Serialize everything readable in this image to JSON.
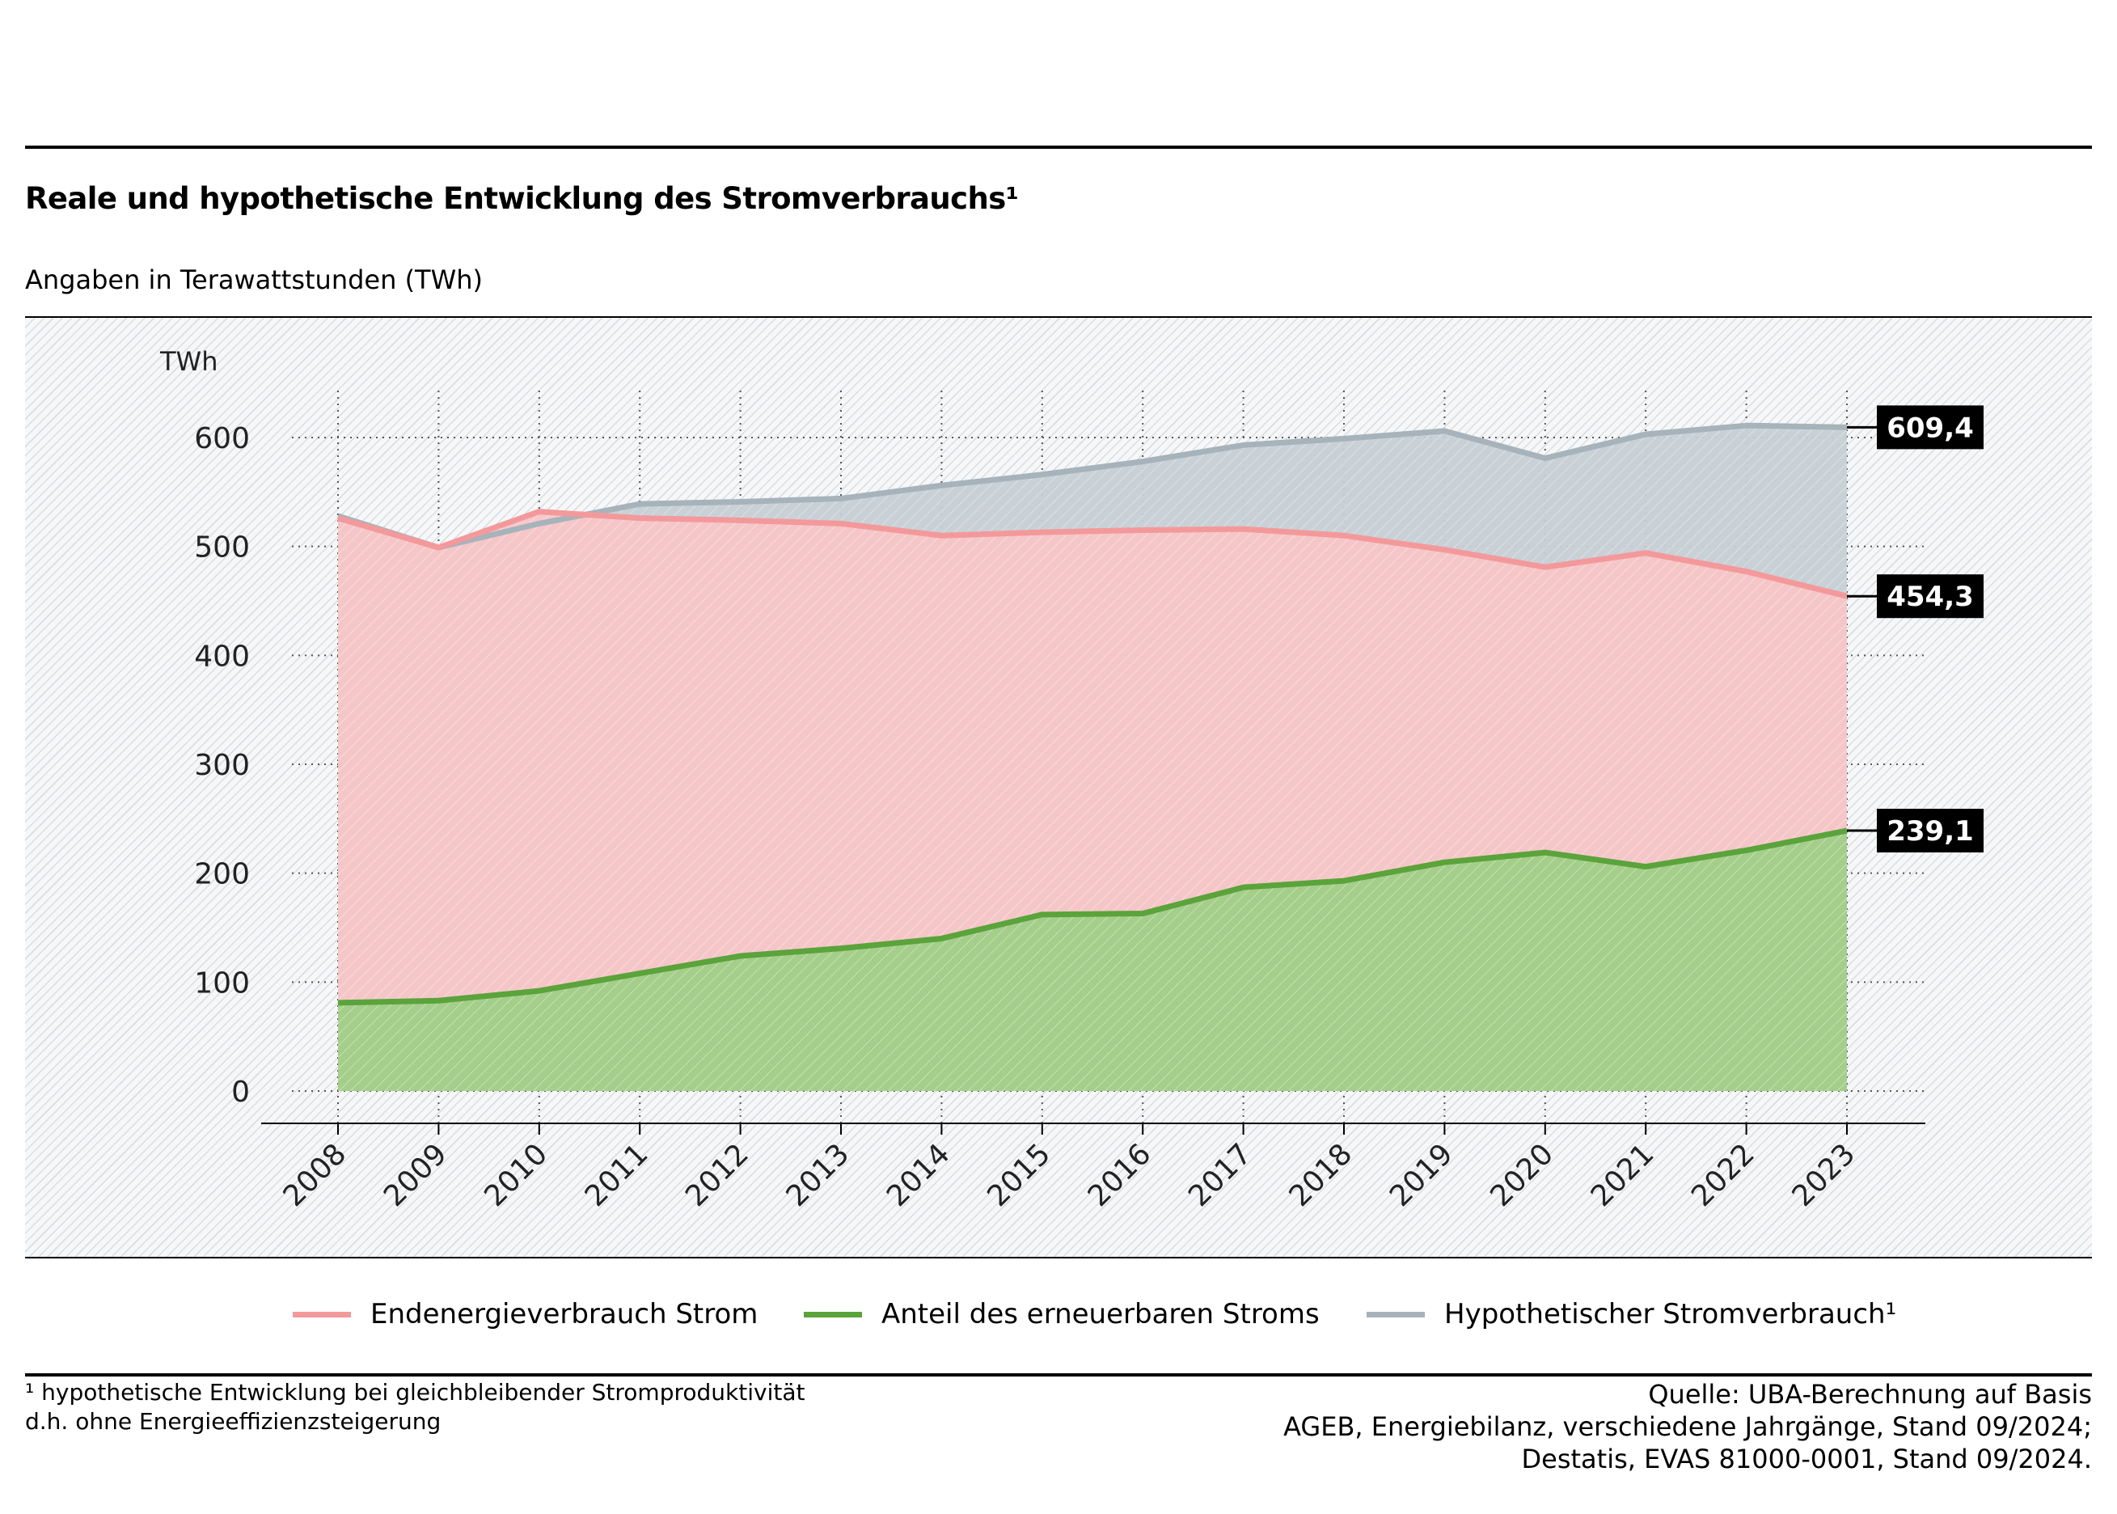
{
  "header": {
    "title": "Reale und hypothetische Entwicklung des Stromverbrauchs¹",
    "subtitle": "Angaben in Terawattstunden (TWh)"
  },
  "chart_data": {
    "type": "area",
    "y_unit": "TWh",
    "ylim": [
      0,
      600
    ],
    "y_ticks": [
      0,
      100,
      200,
      300,
      400,
      500,
      600
    ],
    "y_tick_labels": [
      "0",
      "100",
      "200",
      "300",
      "400",
      "500",
      "600"
    ],
    "grid": true,
    "categories": [
      "2008",
      "2009",
      "2010",
      "2011",
      "2012",
      "2013",
      "2014",
      "2015",
      "2016",
      "2017",
      "2018",
      "2019",
      "2020",
      "2021",
      "2022",
      "2023"
    ],
    "series": [
      {
        "name": "Hypothetischer Stromverbrauch¹",
        "color": "#a7b3bb",
        "fill": "#c6cfd5",
        "values": [
          528,
          499,
          521,
          539,
          541,
          544,
          556,
          566,
          578,
          593,
          599,
          606,
          581,
          603,
          611,
          609.4
        ],
        "end_label": "609,4"
      },
      {
        "name": "Endenergieverbrauch Strom",
        "color": "#f4999b",
        "fill": "#f8c5c7",
        "values": [
          526,
          499,
          532,
          526,
          524,
          521,
          510,
          513,
          515,
          516,
          510,
          497,
          481,
          494,
          477,
          454.3
        ],
        "end_label": "454,3"
      },
      {
        "name": "Anteil des erneuerbaren Stroms",
        "color": "#5ba33b",
        "fill": "#9fcf87",
        "values": [
          81,
          83,
          92,
          108,
          124,
          131,
          140,
          162,
          163,
          187,
          193,
          210,
          219,
          206,
          221,
          239.1
        ],
        "end_label": "239,1"
      }
    ]
  },
  "legend": {
    "items": [
      {
        "label": "Endenergieverbrauch Strom",
        "color": "#f4999b"
      },
      {
        "label": "Anteil des erneuerbaren Stroms",
        "color": "#5ba33b"
      },
      {
        "label": "Hypothetischer Stromverbrauch¹",
        "color": "#a7b3bb"
      }
    ]
  },
  "footnote": {
    "line1": "¹ hypothetische Entwicklung bei gleichbleibender Stromproduktivität",
    "line2": "d.h. ohne Energieeffizienzsteigerung"
  },
  "source": {
    "line1": "Quelle: UBA-Berechnung auf Basis",
    "line2": "AGEB, Energiebilanz, verschiedene Jahrgänge, Stand 09/2024;",
    "line3": "Destatis, EVAS 81000-0001, Stand 09/2024."
  }
}
